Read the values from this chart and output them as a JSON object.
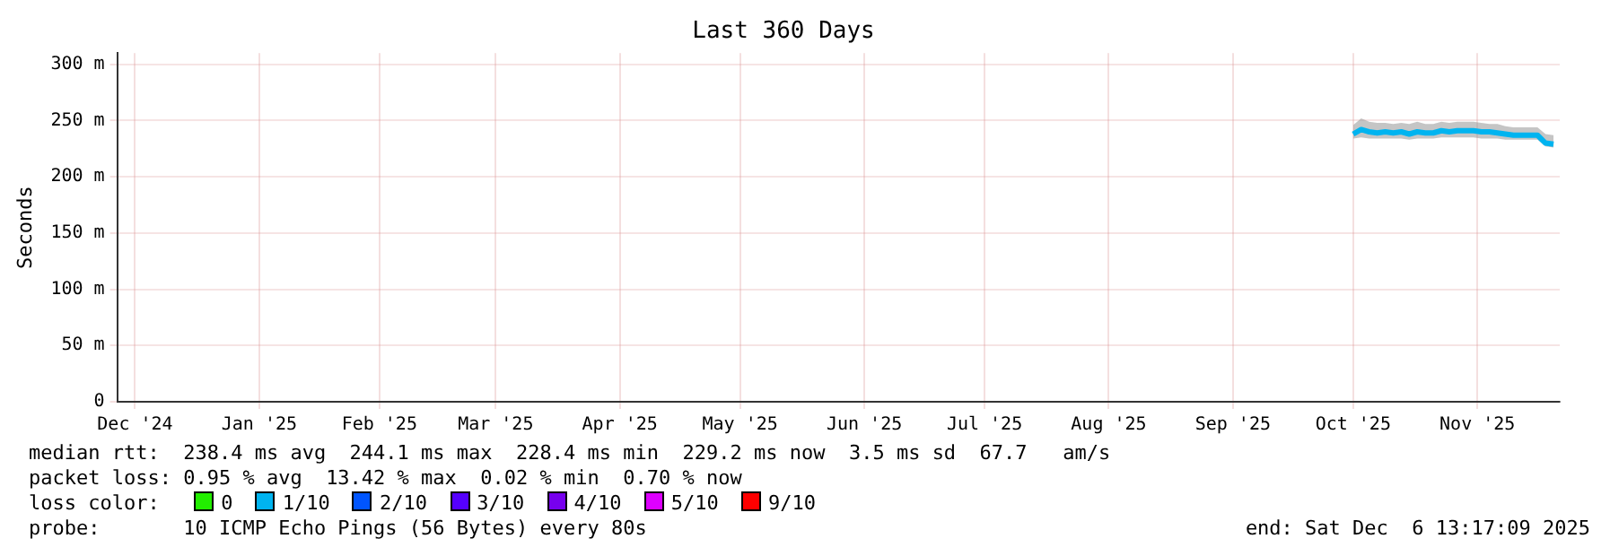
{
  "chart_data": {
    "type": "line",
    "title": "Last 360 Days",
    "ylabel": "Seconds",
    "legend_title": "loss color:",
    "legend": "bottom",
    "grid": true,
    "marker": "none",
    "x": [
      "2025-10-16",
      "2025-10-18",
      "2025-10-20",
      "2025-10-22",
      "2025-10-24",
      "2025-10-26",
      "2025-10-28",
      "2025-10-30",
      "2025-11-01",
      "2025-11-03",
      "2025-11-05",
      "2025-11-07",
      "2025-11-09",
      "2025-11-11",
      "2025-11-13",
      "2025-11-15",
      "2025-11-17",
      "2025-11-19",
      "2025-11-21",
      "2025-11-23",
      "2025-11-25",
      "2025-11-27",
      "2025-11-29",
      "2025-12-01",
      "2025-12-03",
      "2025-12-05"
    ],
    "xlim": [
      "2024-12-11T13:17",
      "2025-12-06T13:17"
    ],
    "xticks": [
      {
        "value": "2024-12-16",
        "label": "Dec '24"
      },
      {
        "value": "2025-01-16",
        "label": "Jan '25"
      },
      {
        "value": "2025-02-15",
        "label": "Feb '25"
      },
      {
        "value": "2025-03-16",
        "label": "Mar '25"
      },
      {
        "value": "2025-04-16",
        "label": "Apr '25"
      },
      {
        "value": "2025-05-16",
        "label": "May '25"
      },
      {
        "value": "2025-06-16",
        "label": "Jun '25"
      },
      {
        "value": "2025-07-16",
        "label": "Jul '25"
      },
      {
        "value": "2025-08-16",
        "label": "Aug '25"
      },
      {
        "value": "2025-09-16",
        "label": "Sep '25"
      },
      {
        "value": "2025-10-16",
        "label": "Oct '25"
      },
      {
        "value": "2025-11-16",
        "label": "Nov '25"
      }
    ],
    "ylim": [
      0,
      310
    ],
    "yticks": [
      0,
      {
        "value": 50,
        "label": "50 m"
      },
      {
        "value": 100,
        "label": "100 m"
      },
      {
        "value": 150,
        "label": "150 m"
      },
      {
        "value": 200,
        "label": "200 m"
      },
      {
        "value": 250,
        "label": "250 m"
      },
      {
        "value": 300,
        "label": "300 m"
      }
    ],
    "series": [
      {
        "name": "0",
        "color": "#22ee00",
        "values": [
          null,
          null,
          null,
          null,
          null,
          null,
          null,
          null,
          null,
          null,
          null,
          null,
          null,
          null,
          null,
          null,
          null,
          null,
          null,
          null,
          null,
          null,
          null,
          null,
          null,
          null
        ]
      },
      {
        "name": "1/10",
        "color": "#00b4f0",
        "values": [
          238,
          242,
          240,
          239,
          240,
          239,
          240,
          238,
          240,
          239,
          239,
          241,
          240,
          241,
          241,
          241,
          240,
          240,
          239,
          238,
          237,
          237,
          237,
          237,
          230,
          229
        ],
        "lower": [
          234,
          235,
          234,
          234,
          234,
          234,
          234,
          233,
          234,
          234,
          234,
          235,
          235,
          235,
          235,
          235,
          234,
          234,
          234,
          233,
          233,
          233,
          233,
          233,
          227,
          226
        ],
        "upper": [
          246,
          252,
          249,
          248,
          248,
          247,
          248,
          247,
          249,
          247,
          247,
          249,
          248,
          249,
          249,
          249,
          248,
          247,
          247,
          245,
          244,
          244,
          244,
          244,
          238,
          237
        ]
      },
      {
        "name": "2/10",
        "color": "#0055ff",
        "values": [
          null,
          null,
          null,
          null,
          null,
          null,
          null,
          null,
          null,
          null,
          null,
          null,
          null,
          null,
          null,
          null,
          null,
          null,
          null,
          null,
          null,
          null,
          null,
          null,
          null,
          null
        ]
      },
      {
        "name": "3/10",
        "color": "#5500ff",
        "values": [
          null,
          null,
          null,
          null,
          null,
          null,
          null,
          null,
          null,
          null,
          null,
          null,
          null,
          null,
          null,
          null,
          null,
          null,
          null,
          null,
          null,
          null,
          null,
          null,
          null,
          null
        ]
      },
      {
        "name": "4/10",
        "color": "#7700ee",
        "values": [
          null,
          null,
          null,
          null,
          null,
          null,
          null,
          null,
          null,
          null,
          null,
          null,
          null,
          null,
          null,
          null,
          null,
          null,
          null,
          null,
          null,
          null,
          null,
          null,
          null,
          null
        ]
      },
      {
        "name": "5/10",
        "color": "#dd00ff",
        "values": [
          null,
          null,
          null,
          null,
          null,
          null,
          null,
          null,
          null,
          null,
          null,
          null,
          null,
          null,
          null,
          null,
          null,
          null,
          null,
          null,
          null,
          null,
          null,
          null,
          null,
          null
        ]
      },
      {
        "name": "9/10",
        "color": "#ff0000",
        "values": [
          null,
          null,
          null,
          null,
          null,
          null,
          null,
          null,
          null,
          null,
          null,
          null,
          null,
          null,
          null,
          null,
          null,
          null,
          null,
          null,
          null,
          null,
          null,
          null,
          null,
          null
        ]
      }
    ],
    "annotations": [
      "median rtt:  238.4 ms avg  244.1 ms max  228.4 ms min  229.2 ms now  3.5 ms sd  67.7   am/s",
      "packet loss: 0.95 % avg  13.42 % max  0.02 % min  0.70 % now",
      "probe:       10 ICMP Echo Pings (56 Bytes) every 80s",
      "end: Sat Dec  6 13:17:09 2025"
    ]
  }
}
